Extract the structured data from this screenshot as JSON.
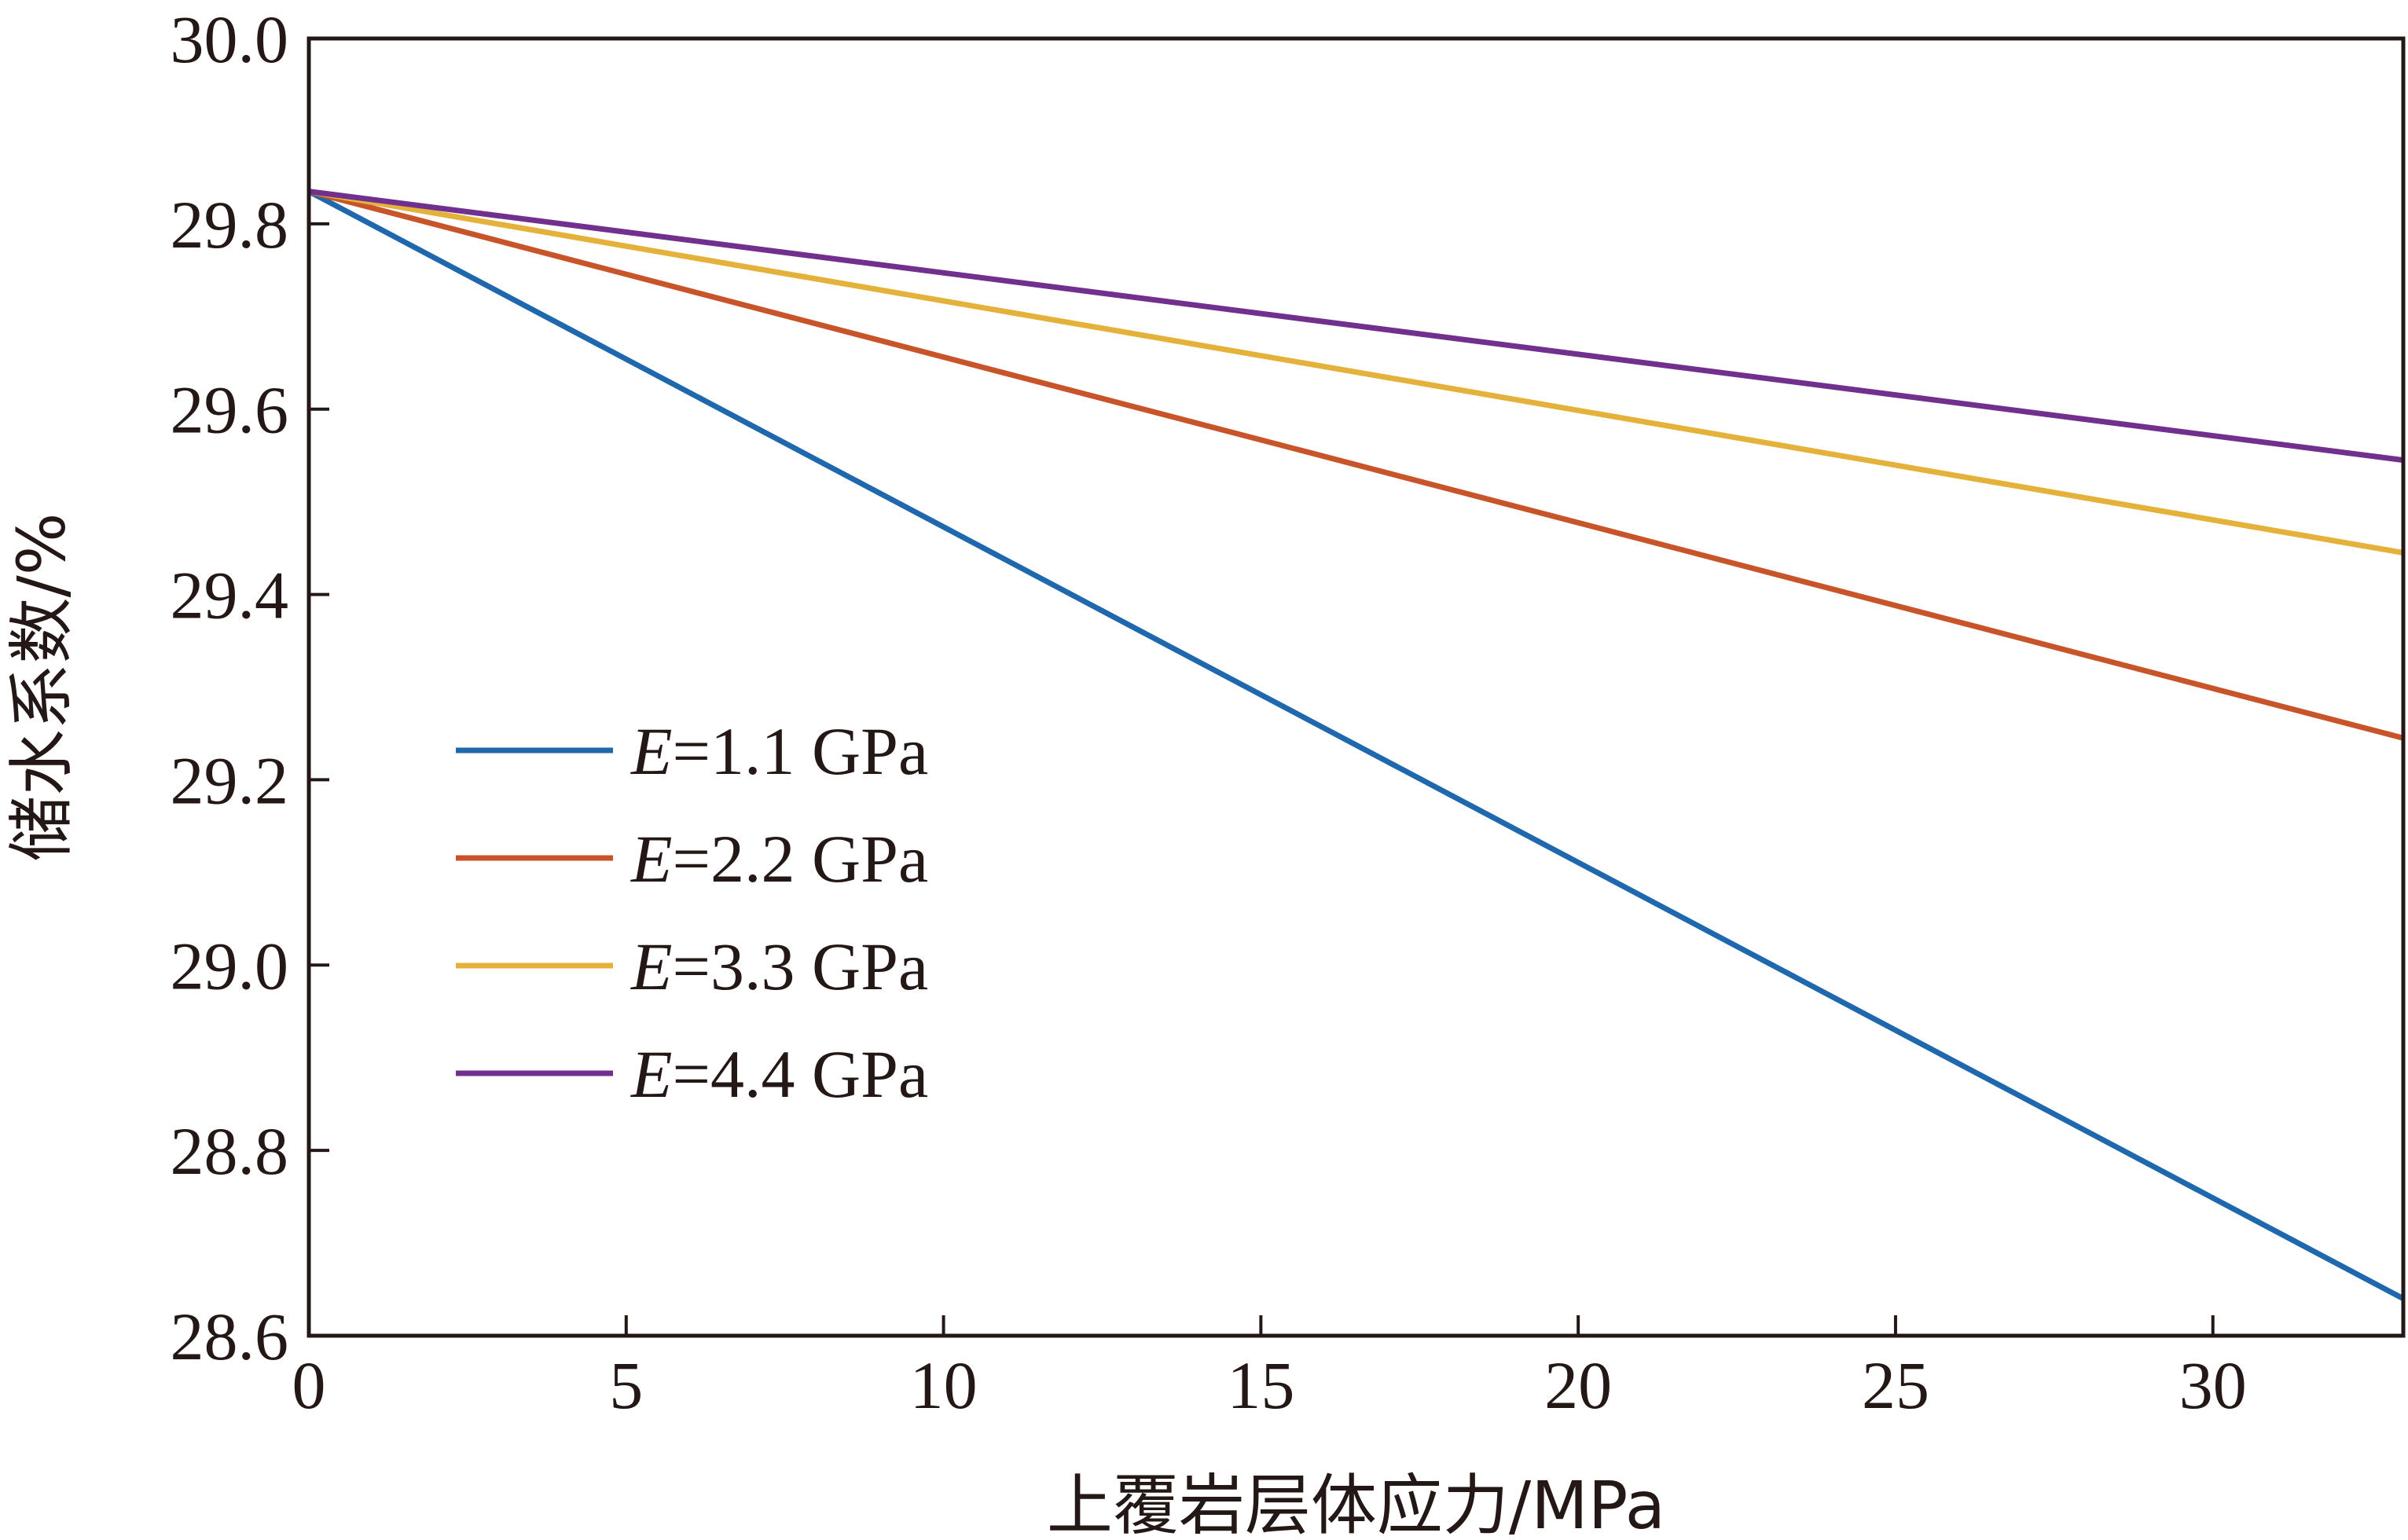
{
  "chart_data": {
    "type": "line",
    "xlabel": "上覆岩层体应力/MPa",
    "ylabel": "储水系数/%",
    "xlim": [
      0,
      33
    ],
    "ylim": [
      28.6,
      30.0
    ],
    "xticks": [
      0,
      5,
      10,
      15,
      20,
      25,
      30
    ],
    "xtick_labels": [
      "0",
      "5",
      "10",
      "15",
      "20",
      "25",
      "30"
    ],
    "yticks": [
      28.6,
      28.8,
      29.0,
      29.2,
      29.4,
      29.6,
      29.8,
      30.0
    ],
    "ytick_labels": [
      "28.6",
      "28.8",
      "29.0",
      "29.2",
      "29.4",
      "29.6",
      "29.8",
      "30.0"
    ],
    "grid": false,
    "legend_position": "left-middle",
    "series": [
      {
        "name": "E=1.1 GPa",
        "name_italic": "E",
        "name_rest": "=1.1 GPa",
        "color": "#1f68ae",
        "x": [
          0,
          33
        ],
        "y": [
          29.835,
          28.64
        ]
      },
      {
        "name": "E=2.2 GPa",
        "name_italic": "E",
        "name_rest": "=2.2 GPa",
        "color": "#c8542a",
        "x": [
          0,
          33
        ],
        "y": [
          29.835,
          29.245
        ]
      },
      {
        "name": "E=3.3 GPa",
        "name_italic": "E",
        "name_rest": "=3.3 GPa",
        "color": "#e4b23a",
        "x": [
          0,
          33
        ],
        "y": [
          29.835,
          29.445
        ]
      },
      {
        "name": "E=4.4 GPa",
        "name_italic": "E",
        "name_rest": "=4.4 GPa",
        "color": "#72308e",
        "x": [
          0,
          33
        ],
        "y": [
          29.835,
          29.545
        ]
      }
    ]
  }
}
